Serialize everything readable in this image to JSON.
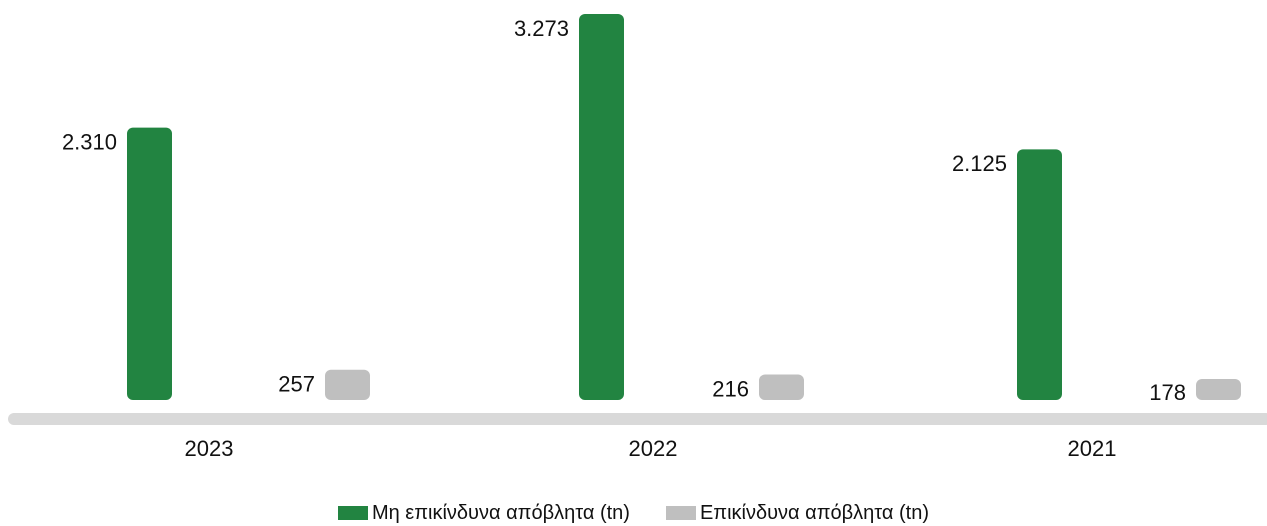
{
  "chart_data": {
    "type": "bar",
    "categories": [
      "2023",
      "2022",
      "2021"
    ],
    "series": [
      {
        "name": "Μη επικίνδυνα απόβλητα (tn)",
        "values": [
          2310,
          3273,
          2125
        ],
        "labels": [
          "2.310",
          "3.273",
          "2.125"
        ],
        "color": "#228441"
      },
      {
        "name": "Επικίνδυνα απόβλητα (tn)",
        "values": [
          257,
          216,
          178
        ],
        "labels": [
          "257",
          "216",
          "178"
        ],
        "color": "#BFBFBF"
      }
    ],
    "ylim": [
      0,
      3273
    ],
    "grid": false,
    "legend_position": "bottom",
    "baseline_color": "#D9D9D9"
  }
}
